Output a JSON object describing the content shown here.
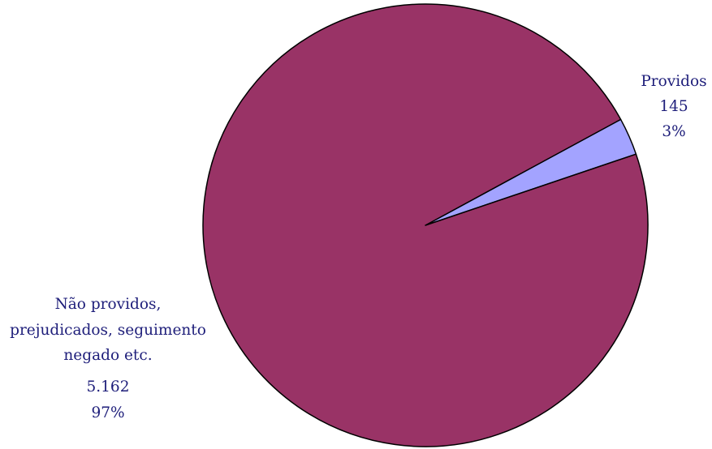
{
  "chart_data": {
    "type": "pie",
    "slices": [
      {
        "name": "Providos",
        "value": 145,
        "percent_label": "3%",
        "value_label": "145",
        "label_lines": [
          "Providos"
        ],
        "color": "#a3a3ff"
      },
      {
        "name": "Não providos, prejudicados, seguimento negado etc.",
        "value": 5162,
        "percent_label": "97%",
        "value_label": "5.162",
        "label_lines": [
          "Não providos,",
          "prejudicados, seguimento",
          "negado etc."
        ],
        "color": "#993366"
      }
    ],
    "legend": "none",
    "data_labels": "outside"
  }
}
